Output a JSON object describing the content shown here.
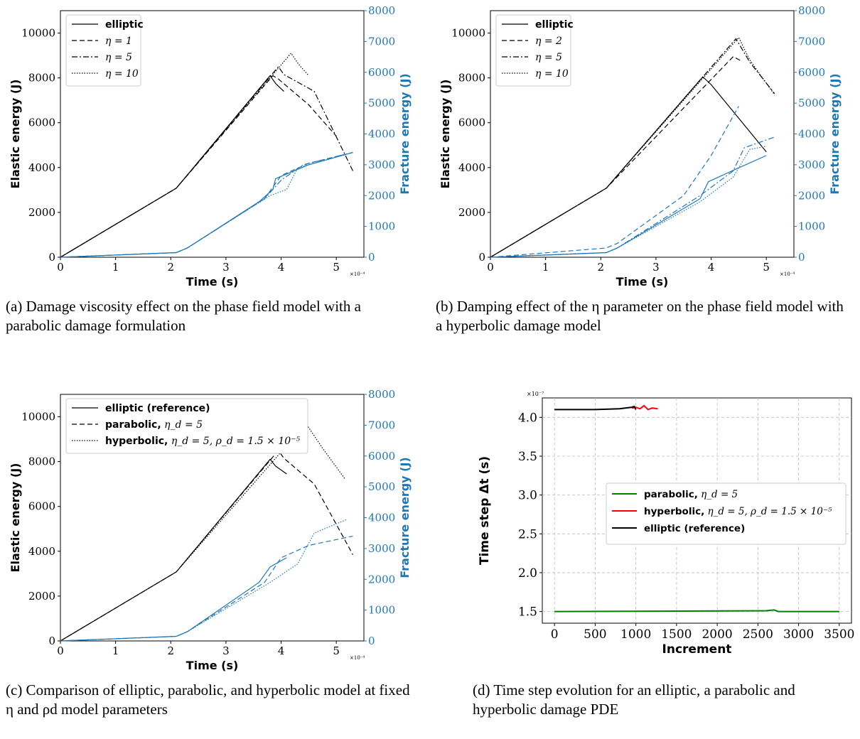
{
  "chart_data": [
    {
      "type": "line",
      "xlabel": "Time (s)",
      "x_multiplier": "×10⁻⁴",
      "ylabel": "Elastic energy (J)",
      "ylabel_right": "Fracture energy (J)",
      "xlim": [
        0,
        5.5
      ],
      "ylim": [
        0,
        11000
      ],
      "ylim_right": [
        0,
        8000
      ],
      "xticks": [
        "0",
        "1",
        "2",
        "3",
        "4",
        "5"
      ],
      "yticks": [
        "0",
        "2000",
        "4000",
        "6000",
        "8000",
        "10000"
      ],
      "yticks_right": [
        "0",
        "1000",
        "2000",
        "3000",
        "4000",
        "5000",
        "6000",
        "7000",
        "8000"
      ],
      "legend_position": "top-left",
      "series": [
        {
          "name": "elliptic",
          "style": "solid",
          "axis": "left",
          "color": "#000000",
          "x": [
            0,
            2.1,
            3.8,
            3.9,
            4.05
          ],
          "y": [
            0,
            3080,
            8100,
            7750,
            7400
          ]
        },
        {
          "name": "η = 1",
          "style": "dashed",
          "axis": "left",
          "color": "#000000",
          "x": [
            0,
            2.1,
            3.85,
            3.95,
            4.5,
            5.0
          ],
          "y": [
            0,
            3080,
            8100,
            7950,
            6800,
            5400
          ]
        },
        {
          "name": "η = 5",
          "style": "dashdot",
          "axis": "left",
          "color": "#000000",
          "x": [
            0,
            2.1,
            3.95,
            4.05,
            4.6,
            5.3
          ],
          "y": [
            0,
            3080,
            8500,
            8150,
            7400,
            3850
          ]
        },
        {
          "name": "η = 10",
          "style": "dotted",
          "axis": "left",
          "color": "#000000",
          "x": [
            0,
            2.1,
            4.18,
            4.32,
            4.5
          ],
          "y": [
            0,
            3080,
            9100,
            8600,
            8100
          ]
        },
        {
          "name": "elliptic",
          "style": "solid",
          "axis": "right",
          "color": "#1f77b4",
          "x": [
            0,
            2.1,
            2.3,
            3.6,
            3.85,
            3.9,
            4.5,
            5.3
          ],
          "y": [
            0,
            150,
            300,
            1800,
            2200,
            2550,
            3000,
            3400
          ]
        },
        {
          "name": "η = 1",
          "style": "dashed",
          "axis": "right",
          "color": "#1f77b4",
          "x": [
            0,
            2.1,
            2.3,
            3.7,
            4.0,
            4.5,
            5.3
          ],
          "y": [
            0,
            150,
            300,
            1900,
            2650,
            3050,
            3400
          ]
        },
        {
          "name": "η = 5",
          "style": "dashdot",
          "axis": "right",
          "color": "#1f77b4",
          "x": [
            0,
            2.1,
            2.3,
            3.7,
            4.0,
            4.4,
            5.3
          ],
          "y": [
            0,
            150,
            300,
            1900,
            2500,
            3000,
            3400
          ]
        },
        {
          "name": "η = 10",
          "style": "dotted",
          "axis": "right",
          "color": "#1f77b4",
          "x": [
            0,
            2.1,
            2.3,
            3.8,
            4.1,
            4.3,
            4.5
          ],
          "y": [
            0,
            150,
            300,
            2000,
            2200,
            2900,
            3000
          ]
        }
      ]
    },
    {
      "type": "line",
      "xlabel": "Time (s)",
      "x_multiplier": "×10⁻⁴",
      "ylabel": "Elastic energy (J)",
      "ylabel_right": "Fracture energy (J)",
      "xlim": [
        0,
        5.5
      ],
      "ylim": [
        0,
        11000
      ],
      "ylim_right": [
        0,
        8000
      ],
      "xticks": [
        "0",
        "1",
        "2",
        "3",
        "4",
        "5"
      ],
      "yticks": [
        "0",
        "2000",
        "4000",
        "6000",
        "8000",
        "10000"
      ],
      "yticks_right": [
        "0",
        "1000",
        "2000",
        "3000",
        "4000",
        "5000",
        "6000",
        "7000",
        "8000"
      ],
      "legend_position": "top-left",
      "series": [
        {
          "name": "elliptic",
          "style": "solid",
          "axis": "left",
          "color": "#000000",
          "x": [
            0,
            2.1,
            3.85,
            4.0,
            4.5,
            5.0
          ],
          "y": [
            0,
            3080,
            8050,
            7700,
            6200,
            4700
          ]
        },
        {
          "name": "η = 2",
          "style": "dashed",
          "axis": "left",
          "color": "#000000",
          "x": [
            0,
            2.1,
            4.4,
            4.55
          ],
          "y": [
            0,
            3080,
            8950,
            8750
          ]
        },
        {
          "name": "η = 5",
          "style": "dashdot",
          "axis": "left",
          "color": "#000000",
          "x": [
            0,
            2.1,
            4.45,
            4.7,
            5.15
          ],
          "y": [
            0,
            3080,
            9750,
            8700,
            7300
          ]
        },
        {
          "name": "η = 10",
          "style": "dotted",
          "axis": "left",
          "color": "#000000",
          "x": [
            0,
            2.1,
            4.5,
            4.7,
            5.15
          ],
          "y": [
            0,
            3080,
            9800,
            8800,
            7250
          ]
        },
        {
          "name": "elliptic",
          "style": "solid",
          "axis": "right",
          "color": "#1f77b4",
          "x": [
            0,
            2.1,
            2.3,
            3.8,
            3.95,
            4.5,
            5.0
          ],
          "y": [
            0,
            150,
            300,
            1900,
            2450,
            2900,
            3300
          ]
        },
        {
          "name": "η = 2",
          "style": "dashed",
          "axis": "right",
          "color": "#1f77b4",
          "x": [
            0,
            2.1,
            2.3,
            3.5,
            4.0,
            4.5
          ],
          "y": [
            0,
            300,
            450,
            2000,
            3300,
            4900
          ]
        },
        {
          "name": "η = 5",
          "style": "dashdot",
          "axis": "right",
          "color": "#1f77b4",
          "x": [
            0,
            2.1,
            2.3,
            3.8,
            4.4,
            4.6,
            5.15
          ],
          "y": [
            0,
            150,
            300,
            2000,
            2800,
            3550,
            3900
          ]
        },
        {
          "name": "η = 10",
          "style": "dotted",
          "axis": "right",
          "color": "#1f77b4",
          "x": [
            0,
            2.1,
            2.3,
            3.8,
            4.4,
            4.7,
            5.0
          ],
          "y": [
            0,
            150,
            300,
            1800,
            2600,
            3500,
            3600
          ]
        }
      ]
    },
    {
      "type": "line",
      "xlabel": "Time (s)",
      "x_multiplier": "×10⁻⁴",
      "ylabel": "Elastic energy (J)",
      "ylabel_right": "Fracture energy (J)",
      "xlim": [
        0,
        5.5
      ],
      "ylim": [
        0,
        11000
      ],
      "ylim_right": [
        0,
        8000
      ],
      "xticks": [
        "0",
        "1",
        "2",
        "3",
        "4",
        "5"
      ],
      "yticks": [
        "0",
        "2000",
        "4000",
        "6000",
        "8000",
        "10000"
      ],
      "yticks_right": [
        "0",
        "1000",
        "2000",
        "3000",
        "4000",
        "5000",
        "6000",
        "7000",
        "8000"
      ],
      "legend_position": "top-left",
      "legend": [
        {
          "bold": "elliptic (reference)",
          "math": ""
        },
        {
          "bold": "parabolic,",
          "math": " η_d = 5"
        },
        {
          "bold": "hyperbolic,",
          "math": " η_d = 5,  ρ_d = 1.5 × 10⁻⁵"
        }
      ],
      "series": [
        {
          "name": "elliptic (reference)",
          "style": "solid",
          "axis": "left",
          "color": "#000000",
          "x": [
            0,
            2.1,
            3.8,
            3.9,
            4.1
          ],
          "y": [
            0,
            3080,
            8100,
            7800,
            7450
          ]
        },
        {
          "name": "parabolic, η_d = 5",
          "style": "dashed",
          "axis": "left",
          "color": "#000000",
          "x": [
            0,
            2.1,
            3.95,
            4.05,
            4.6,
            5.3
          ],
          "y": [
            0,
            3080,
            8500,
            8150,
            7000,
            3850
          ]
        },
        {
          "name": "hyperbolic, η_d = 5, ρ_d = 1.5 × 10⁻⁵",
          "style": "dotted",
          "axis": "left",
          "color": "#000000",
          "x": [
            0,
            2.1,
            4.45,
            4.75,
            5.15
          ],
          "y": [
            0,
            3080,
            9700,
            8600,
            7250
          ]
        },
        {
          "name": "elliptic (reference)",
          "style": "solid",
          "axis": "right",
          "color": "#1f77b4",
          "x": [
            0,
            2.1,
            2.3,
            3.6,
            3.8,
            4.1
          ],
          "y": [
            0,
            150,
            300,
            1900,
            2400,
            2700
          ]
        },
        {
          "name": "parabolic, η_d = 5",
          "style": "dashed",
          "axis": "right",
          "color": "#1f77b4",
          "x": [
            0,
            2.1,
            2.3,
            3.7,
            4.0,
            4.5,
            5.3
          ],
          "y": [
            0,
            150,
            300,
            1900,
            2700,
            3100,
            3400
          ]
        },
        {
          "name": "hyperbolic, η_d = 5, ρ_d = 1.5 × 10⁻⁵",
          "style": "dotted",
          "axis": "right",
          "color": "#1f77b4",
          "x": [
            0,
            2.1,
            2.3,
            3.8,
            4.3,
            4.6,
            5.2
          ],
          "y": [
            0,
            150,
            300,
            1900,
            2500,
            3500,
            3950
          ]
        }
      ]
    },
    {
      "type": "line",
      "xlabel": "Increment",
      "ylabel": "Time step Δt (s)",
      "y_multiplier": "×10⁻⁷",
      "xlim": [
        -150,
        3650
      ],
      "ylim": [
        1.35,
        4.25
      ],
      "grid": true,
      "xticks": [
        "0",
        "500",
        "1000",
        "1500",
        "2000",
        "2500",
        "3000",
        "3500"
      ],
      "yticks": [
        "1.5",
        "2.0",
        "2.5",
        "3.0",
        "3.5",
        "4.0"
      ],
      "legend_position": "center-right",
      "legend": [
        {
          "bold": "parabolic,",
          "math": " η_d = 5"
        },
        {
          "bold": "hyperbolic,",
          "math": " η_d = 5,  ρ_d = 1.5 × 10⁻⁵"
        },
        {
          "bold": "elliptic (reference)",
          "math": ""
        }
      ],
      "series": [
        {
          "name": "parabolic, η_d = 5",
          "color": "#008000",
          "x": [
            0,
            2600,
            2700,
            2750,
            3500
          ],
          "y": [
            1.5,
            1.51,
            1.52,
            1.5,
            1.5
          ]
        },
        {
          "name": "hyperbolic, η_d = 5, ρ_d = 1.5 × 10⁻⁵",
          "color": "#ff0000",
          "x": [
            950,
            1000,
            1050,
            1100,
            1150,
            1200,
            1270
          ],
          "y": [
            4.12,
            4.13,
            4.11,
            4.15,
            4.1,
            4.12,
            4.11
          ]
        },
        {
          "name": "elliptic (reference)",
          "color": "#000000",
          "x": [
            0,
            500,
            800,
            950,
            980,
            1000
          ],
          "y": [
            4.1,
            4.1,
            4.11,
            4.13,
            4.14,
            4.1
          ]
        }
      ]
    }
  ],
  "captions": {
    "a": "(a) Damage viscosity effect on the phase field model with a parabolic damage formulation",
    "b": "(b) Damping effect of the η parameter on the phase field model with a hyperbolic damage model",
    "c": "(c) Comparison of elliptic, parabolic, and hyperbolic model at fixed η and ρd model parameters",
    "d": "(d) Time step evolution for an elliptic, a parabolic and hyperbolic damage PDE"
  }
}
